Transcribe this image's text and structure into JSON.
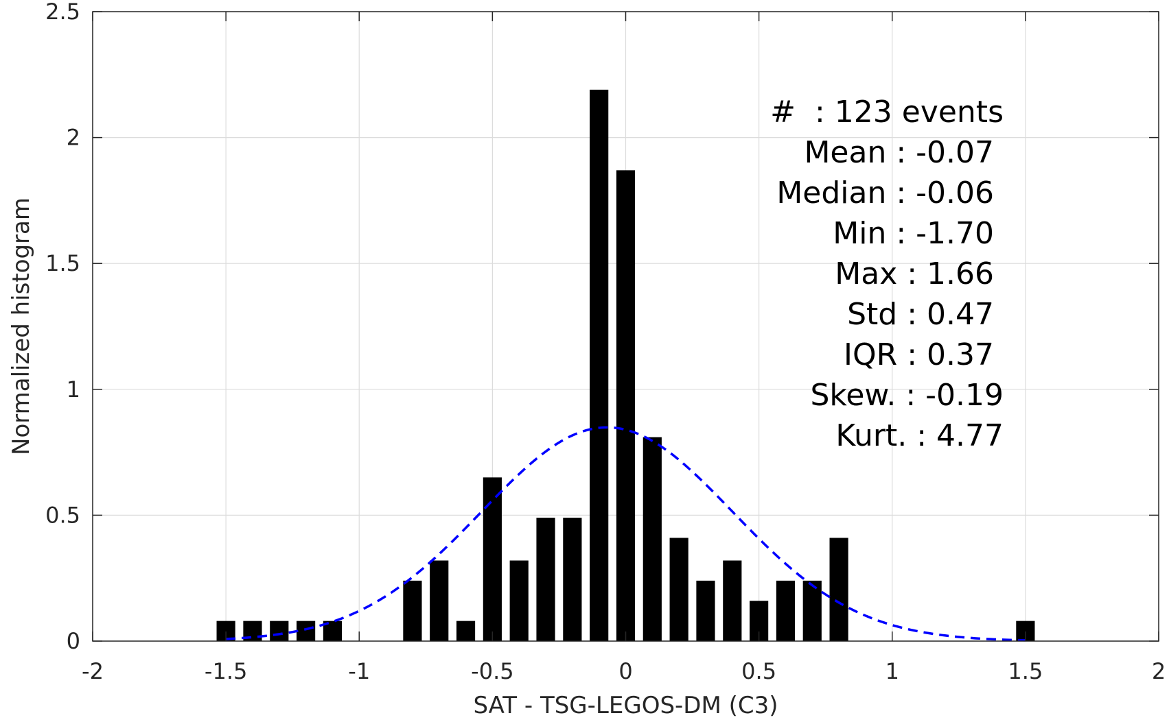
{
  "chart_data": {
    "type": "bar",
    "xlabel": "SAT - TSG-LEGOS-DM (C3)",
    "ylabel": "Normalized histogram",
    "xlim": [
      -2,
      2
    ],
    "ylim": [
      0,
      2.5
    ],
    "xticks": [
      -2,
      -1.5,
      -1,
      -0.5,
      0,
      0.5,
      1,
      1.5,
      2
    ],
    "xtick_labels": [
      "-2",
      "-1.5",
      "-1",
      "-0.5",
      "0",
      "0.5",
      "1",
      "1.5",
      "2"
    ],
    "yticks": [
      0,
      0.5,
      1,
      1.5,
      2,
      2.5
    ],
    "ytick_labels": [
      "0",
      "0.5",
      "1",
      "1.5",
      "2",
      "2.5"
    ],
    "grid": true,
    "bin_width": 0.1,
    "bars": [
      {
        "x": -1.5,
        "value": 0.08
      },
      {
        "x": -1.4,
        "value": 0.08
      },
      {
        "x": -1.3,
        "value": 0.08
      },
      {
        "x": -1.2,
        "value": 0.08
      },
      {
        "x": -1.1,
        "value": 0.08
      },
      {
        "x": -0.8,
        "value": 0.24
      },
      {
        "x": -0.7,
        "value": 0.32
      },
      {
        "x": -0.6,
        "value": 0.08
      },
      {
        "x": -0.5,
        "value": 0.65
      },
      {
        "x": -0.4,
        "value": 0.32
      },
      {
        "x": -0.3,
        "value": 0.49
      },
      {
        "x": -0.2,
        "value": 0.49
      },
      {
        "x": -0.1,
        "value": 2.19
      },
      {
        "x": 0.0,
        "value": 1.87
      },
      {
        "x": 0.1,
        "value": 0.81
      },
      {
        "x": 0.2,
        "value": 0.41
      },
      {
        "x": 0.3,
        "value": 0.24
      },
      {
        "x": 0.4,
        "value": 0.32
      },
      {
        "x": 0.5,
        "value": 0.16
      },
      {
        "x": 0.6,
        "value": 0.24
      },
      {
        "x": 0.7,
        "value": 0.24
      },
      {
        "x": 0.8,
        "value": 0.41
      },
      {
        "x": 1.5,
        "value": 0.08
      }
    ],
    "bar_color": "#000000",
    "fit_curve": {
      "type": "gaussian",
      "mean": -0.07,
      "std": 0.47,
      "x_range": [
        -1.5,
        1.5
      ],
      "color": "#0000ff",
      "style": "dashed"
    },
    "stats_lines": [
      "#  : 123 events",
      "Mean : -0.07",
      "Median : -0.06",
      "Min : -1.70",
      "Max : 1.66",
      "Std : 0.47",
      "IQR : 0.37",
      "Skew. : -0.19",
      "Kurt. : 4.77"
    ]
  }
}
